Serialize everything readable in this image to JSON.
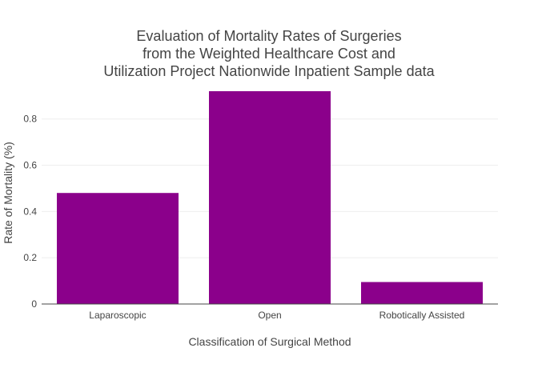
{
  "chart_data": {
    "type": "bar",
    "title_lines": [
      "Evaluation of Mortality Rates of Surgeries",
      "from the Weighted Healthcare Cost and",
      "Utilization Project Nationwide Inpatient Sample data"
    ],
    "xlabel": "Classification of Surgical Method",
    "ylabel": "Rate of Mortality (%)",
    "categories": [
      "Laparoscopic",
      "Open",
      "Robotically Assisted"
    ],
    "values": [
      0.48,
      0.92,
      0.095
    ],
    "ylim": [
      0,
      0.92
    ],
    "yticks": [
      0,
      0.2,
      0.4,
      0.6,
      0.8
    ],
    "ytick_labels": [
      "0",
      "0.2",
      "0.4",
      "0.6",
      "0.8"
    ],
    "bar_color": "#8b008b",
    "grid": true
  }
}
